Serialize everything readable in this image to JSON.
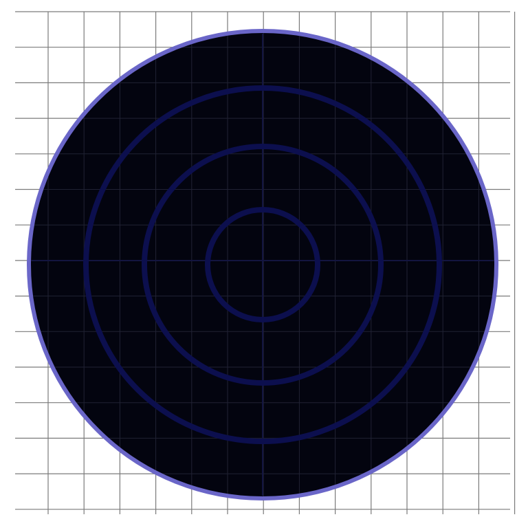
{
  "colors": {
    "background": "#ffffff",
    "grid_line": "#7a7a7a",
    "disc_fill": "#03040f",
    "disc_border": "#6a66c8",
    "ring_stroke": "#0c0f4e",
    "crosshair": "#131540"
  },
  "grid": {
    "visible": true,
    "vertical_lines": 14,
    "horizontal_lines": 15
  },
  "target": {
    "ring_count": 3
  }
}
